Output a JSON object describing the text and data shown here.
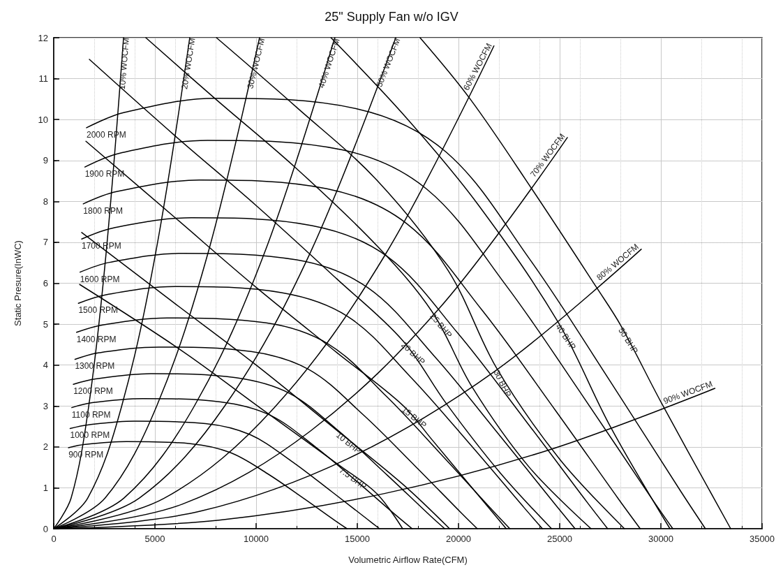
{
  "chart_data": {
    "type": "line",
    "title": "25\" Supply Fan w/o IGV",
    "xlabel": "Volumetric Airflow Rate(CFM)",
    "ylabel": "Static Presure(InWC)",
    "xlim": [
      0,
      35000
    ],
    "xticks": [
      0,
      5000,
      10000,
      15000,
      20000,
      25000,
      30000,
      35000
    ],
    "ylim": [
      0,
      12
    ],
    "yticks": [
      0,
      1,
      2,
      3,
      4,
      5,
      6,
      7,
      8,
      9,
      10,
      11,
      12
    ],
    "grid": true,
    "data_labels": false,
    "series": [
      {
        "name": "900 RPM",
        "color": "#000000",
        "x": [
          730,
          1550,
          3600,
          6750,
          8730,
          10580,
          12380,
          13950,
          14490
        ],
        "values": [
          1.98,
          2.06,
          2.13,
          2.08,
          1.86,
          1.34,
          0.73,
          0.18,
          0
        ]
      },
      {
        "name": "1000 RPM",
        "color": "#000000",
        "x": [
          810,
          1720,
          4000,
          7500,
          9700,
          11750,
          13750,
          15500,
          16100
        ],
        "values": [
          2.45,
          2.54,
          2.63,
          2.57,
          2.3,
          1.65,
          0.9,
          0.23,
          0
        ]
      },
      {
        "name": "1100 RPM",
        "color": "#000000",
        "x": [
          890,
          1900,
          4400,
          8250,
          10670,
          12930,
          15130,
          17050,
          17710
        ],
        "values": [
          2.96,
          3.08,
          3.18,
          3.1,
          2.78,
          2.0,
          1.09,
          0.27,
          0
        ]
      },
      {
        "name": "1200 RPM",
        "color": "#000000",
        "x": [
          970,
          2070,
          4800,
          9000,
          11640,
          14100,
          16500,
          18600,
          19320
        ],
        "values": [
          3.53,
          3.66,
          3.79,
          3.69,
          3.31,
          2.38,
          1.3,
          0.32,
          0
        ]
      },
      {
        "name": "1300 RPM",
        "color": "#000000",
        "x": [
          1050,
          2240,
          5200,
          9750,
          12610,
          15280,
          17880,
          20150,
          20930
        ],
        "values": [
          4.14,
          4.3,
          4.44,
          4.33,
          3.89,
          2.79,
          1.52,
          0.38,
          0
        ]
      },
      {
        "name": "1400 RPM",
        "color": "#000000",
        "x": [
          1130,
          2420,
          5600,
          10500,
          13580,
          16450,
          19250,
          21700,
          22540
        ],
        "values": [
          4.8,
          4.98,
          5.15,
          5.03,
          4.51,
          3.23,
          1.76,
          0.44,
          0
        ]
      },
      {
        "name": "1500 RPM",
        "color": "#000000",
        "x": [
          1220,
          2590,
          6000,
          11250,
          14550,
          17630,
          20630,
          23250,
          24150
        ],
        "values": [
          5.51,
          5.72,
          5.92,
          5.77,
          5.18,
          3.71,
          2.03,
          0.51,
          0
        ]
      },
      {
        "name": "1600 RPM",
        "color": "#000000",
        "x": [
          1300,
          2760,
          6400,
          12000,
          15520,
          18800,
          22000,
          24800,
          25760
        ],
        "values": [
          6.27,
          6.51,
          6.73,
          6.57,
          5.89,
          4.22,
          2.3,
          0.58,
          0
        ]
      },
      {
        "name": "1700 RPM",
        "color": "#000000",
        "x": [
          1380,
          2930,
          6800,
          12750,
          16490,
          19980,
          23380,
          26350,
          27370
        ],
        "values": [
          7.08,
          7.35,
          7.6,
          7.41,
          6.65,
          4.77,
          2.6,
          0.65,
          0
        ]
      },
      {
        "name": "1800 RPM",
        "color": "#000000",
        "x": [
          1460,
          3110,
          7200,
          13500,
          17460,
          21150,
          24750,
          27900,
          28980
        ],
        "values": [
          7.94,
          8.24,
          8.52,
          8.31,
          7.45,
          5.35,
          2.92,
          0.73,
          0
        ]
      },
      {
        "name": "1900 RPM",
        "color": "#000000",
        "x": [
          1540,
          3280,
          7600,
          14250,
          18430,
          22330,
          26130,
          29450,
          30590
        ],
        "values": [
          8.84,
          9.18,
          9.49,
          9.26,
          8.3,
          5.96,
          3.25,
          0.81,
          0
        ]
      },
      {
        "name": "2000 RPM",
        "color": "#000000",
        "x": [
          1620,
          3450,
          8000,
          15000,
          19400,
          23500,
          27500,
          31000,
          32200
        ],
        "values": [
          9.8,
          10.17,
          10.52,
          10.26,
          9.2,
          6.6,
          3.6,
          0.9,
          0
        ]
      },
      {
        "name": "10% WOCFM",
        "color": "#000000",
        "x": [
          0,
          860,
          1730,
          2590,
          3450
        ],
        "values": [
          0,
          0.75,
          3,
          6.75,
          12
        ]
      },
      {
        "name": "20% WOCFM",
        "color": "#000000",
        "x": [
          0,
          1680,
          3360,
          5040,
          6720
        ],
        "values": [
          0,
          0.75,
          3,
          6.75,
          12
        ]
      },
      {
        "name": "30% WOCFM",
        "color": "#000000",
        "x": [
          0,
          2540,
          5090,
          7630,
          10170
        ],
        "values": [
          0,
          0.75,
          3,
          6.75,
          12
        ]
      },
      {
        "name": "40% WOCFM",
        "color": "#000000",
        "x": [
          0,
          3470,
          6950,
          10420,
          13890
        ],
        "values": [
          0,
          0.75,
          3,
          6.75,
          12
        ]
      },
      {
        "name": "50% WOCFM",
        "color": "#000000",
        "x": [
          0,
          4230,
          8450,
          12680,
          16900
        ],
        "values": [
          0,
          0.75,
          3,
          6.75,
          12
        ]
      },
      {
        "name": "60% WOCFM",
        "color": "#000000",
        "x": [
          0,
          5440,
          10880,
          16310,
          21750
        ],
        "values": [
          0,
          0.74,
          2.95,
          6.64,
          11.8
        ]
      },
      {
        "name": "70% WOCFM",
        "color": "#000000",
        "x": [
          0,
          6350,
          12690,
          19040,
          25380
        ],
        "values": [
          0,
          0.6,
          2.39,
          5.38,
          9.56
        ]
      },
      {
        "name": "80% WOCFM",
        "color": "#000000",
        "x": [
          0,
          7260,
          14520,
          21770,
          29030
        ],
        "values": [
          0,
          0.43,
          1.71,
          3.84,
          6.83
        ]
      },
      {
        "name": "90% WOCFM",
        "color": "#000000",
        "x": [
          0,
          8170,
          16340,
          24500,
          32670
        ],
        "values": [
          0,
          0.21,
          0.86,
          1.93,
          3.43
        ]
      },
      {
        "name": "7.5 BHP",
        "color": "#000000",
        "x": [
          1280,
          6210,
          10350,
          14140,
          15980,
          17240
        ],
        "values": [
          5.97,
          4.39,
          2.9,
          1.54,
          0.85,
          0
        ]
      },
      {
        "name": "10 BHP",
        "color": "#000000",
        "x": [
          1380,
          6000,
          10000,
          14000,
          17240,
          19560
        ],
        "values": [
          7.24,
          5.5,
          4.0,
          2.4,
          1.09,
          0
        ]
      },
      {
        "name": "15 BHP",
        "color": "#000000",
        "x": [
          1590,
          6000,
          10000,
          14000,
          17240,
          18700,
          20500,
          22360
        ],
        "values": [
          9.47,
          7.6,
          5.9,
          4.3,
          3.02,
          2.17,
          1.1,
          0
        ]
      },
      {
        "name": "20 BHP",
        "color": "#000000",
        "x": [
          1760,
          6000,
          10000,
          14000,
          17240,
          19380,
          22000,
          24600
        ],
        "values": [
          11.47,
          9.6,
          7.9,
          6.1,
          4.6,
          3.07,
          1.4,
          0
        ]
      },
      {
        "name": "25 BHP",
        "color": "#000000",
        "x": [
          4550,
          8000,
          12000,
          16000,
          18700,
          20690,
          23500,
          26550
        ],
        "values": [
          12,
          10.5,
          8.8,
          6.9,
          5.3,
          3.45,
          1.5,
          0
        ]
      },
      {
        "name": "30 BHP",
        "color": "#000000",
        "x": [
          8040,
          12000,
          16000,
          19500,
          21900,
          25000,
          28200
        ],
        "values": [
          12,
          10.3,
          8.5,
          6.3,
          3.91,
          1.7,
          0
        ]
      },
      {
        "name": "40 BHP",
        "color": "#000000",
        "x": [
          13700,
          17500,
          21000,
          24930,
          27500,
          30450
        ],
        "values": [
          12,
          10.0,
          7.9,
          5.04,
          2.5,
          0
        ]
      },
      {
        "name": "50 BHP",
        "color": "#000000",
        "x": [
          18100,
          20580,
          23630,
          26830,
          28040,
          30000,
          33450
        ],
        "values": [
          12,
          10.5,
          8.3,
          5.89,
          4.95,
          3.1,
          0
        ]
      }
    ]
  }
}
